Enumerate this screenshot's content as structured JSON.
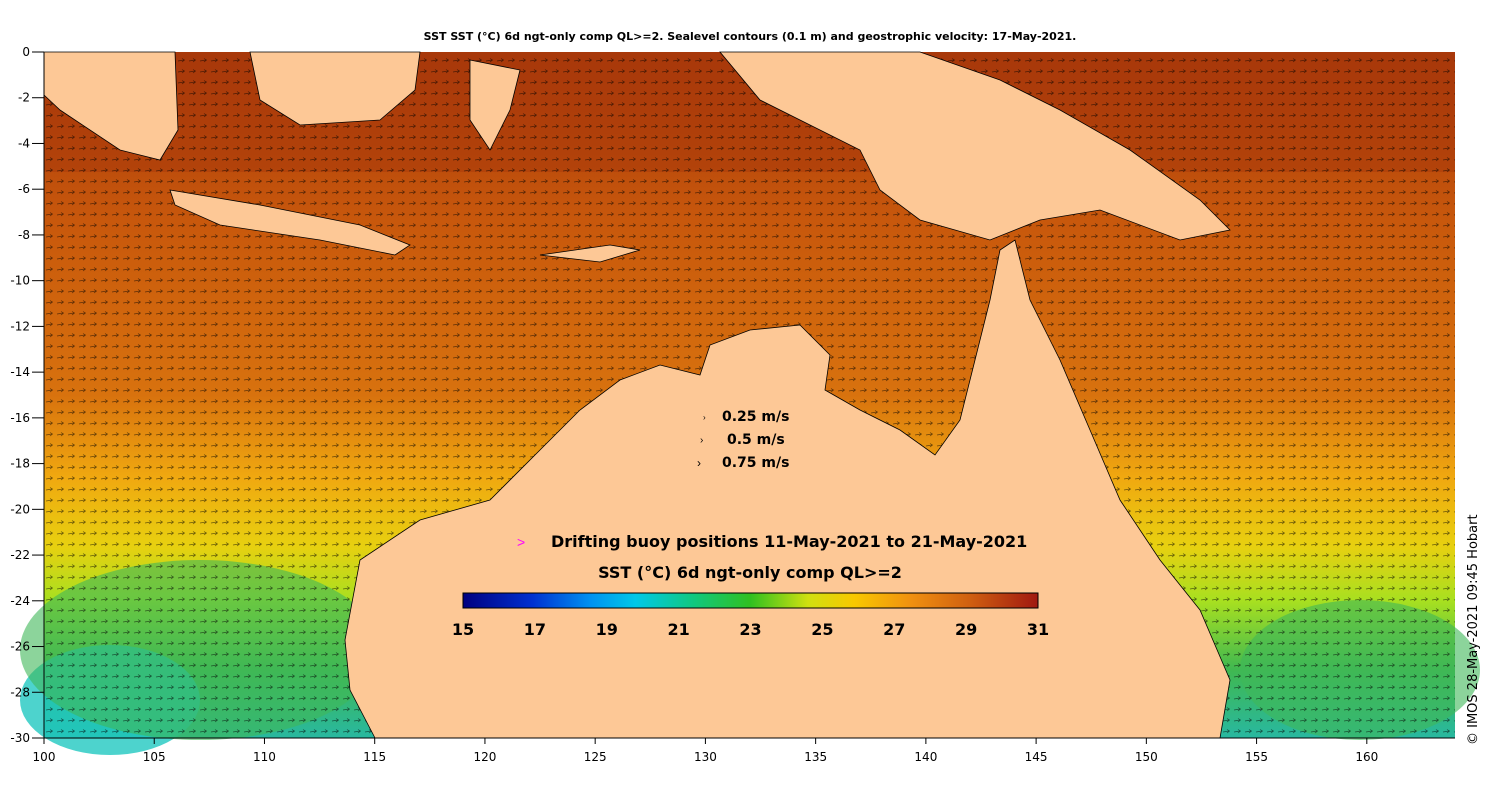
{
  "title": "SST SST (°C) 6d ngt-only comp QL>=2. Sealevel contours (0.1 m) and geostrophic velocity: 17-May-2021.",
  "x_ticks": [
    "100",
    "105",
    "110",
    "115",
    "120",
    "125",
    "130",
    "135",
    "140",
    "145",
    "150",
    "155",
    "160"
  ],
  "y_ticks": [
    "0",
    "-2",
    "-4",
    "-6",
    "-8",
    "-10",
    "-12",
    "-14",
    "-16",
    "-18",
    "-20",
    "-22",
    "-24",
    "-26",
    "-28",
    "-30"
  ],
  "velocity_legend": [
    "0.25 m/s",
    "0.5 m/s",
    "0.75 m/s"
  ],
  "buoy_legend": {
    "marker": ">",
    "label": "Drifting buoy positions 11-May-2021 to 21-May-2021",
    "color": "#ff00ff"
  },
  "colorbar": {
    "title": "SST (°C) 6d ngt-only comp QL>=2",
    "labels": [
      "15",
      "17",
      "19",
      "21",
      "23",
      "25",
      "27",
      "29",
      "31"
    ],
    "range": [
      15,
      31
    ]
  },
  "credit": "© IMOS 28-May-2021 09:45 Hobart",
  "colors": {
    "land": "#fdc896",
    "warm": "#c8500a",
    "hot": "#a0320a",
    "mid": "#e88a14",
    "cool": "#62c02e",
    "cold": "#20c8c8"
  },
  "map_extent": {
    "lon": [
      100,
      164
    ],
    "lat": [
      -30,
      0
    ]
  }
}
